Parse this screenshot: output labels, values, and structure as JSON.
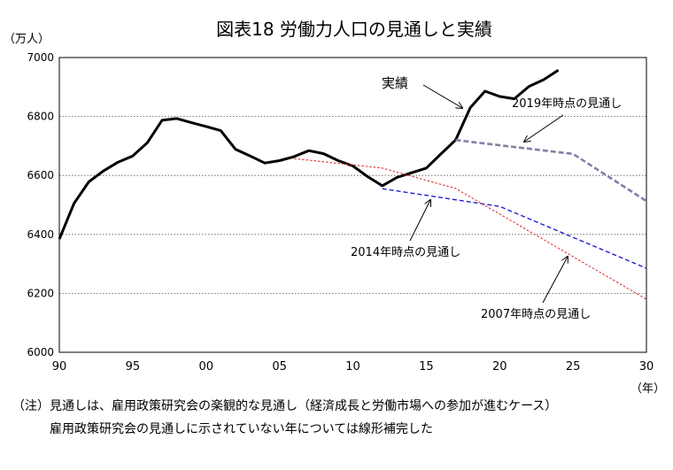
{
  "chart_data": {
    "type": "line",
    "title": "図表18 労働力人口の見通しと実績",
    "y_unit_label": "（万人）",
    "x_unit_label": "（年）",
    "xlim": [
      1990,
      2030
    ],
    "ylim": [
      6000,
      7000
    ],
    "x_ticks": [
      {
        "value": 1990,
        "label": "90"
      },
      {
        "value": 1995,
        "label": "95"
      },
      {
        "value": 2000,
        "label": "00"
      },
      {
        "value": 2005,
        "label": "05"
      },
      {
        "value": 2010,
        "label": "10"
      },
      {
        "value": 2015,
        "label": "15"
      },
      {
        "value": 2020,
        "label": "20"
      },
      {
        "value": 2025,
        "label": "25"
      },
      {
        "value": 2030,
        "label": "30"
      }
    ],
    "y_ticks": [
      {
        "value": 6000,
        "label": "6000"
      },
      {
        "value": 6200,
        "label": "6200"
      },
      {
        "value": 6400,
        "label": "6400"
      },
      {
        "value": 6600,
        "label": "6600"
      },
      {
        "value": 6800,
        "label": "6800"
      },
      {
        "value": 7000,
        "label": "7000"
      }
    ],
    "grid": "horizontal dotted",
    "series": [
      {
        "name": "実績",
        "color": "#000000",
        "style": "solid",
        "x": [
          1990,
          1991,
          1992,
          1993,
          1994,
          1995,
          1996,
          1997,
          1998,
          1999,
          2000,
          2001,
          2002,
          2003,
          2004,
          2005,
          2006,
          2007,
          2008,
          2009,
          2010,
          2011,
          2012,
          2013,
          2014,
          2015,
          2016,
          2017,
          2018,
          2019,
          2020,
          2021,
          2022,
          2023,
          2024
        ],
        "values": [
          6384,
          6505,
          6578,
          6615,
          6645,
          6666,
          6711,
          6787,
          6793,
          6779,
          6766,
          6752,
          6689,
          6666,
          6642,
          6650,
          6664,
          6684,
          6674,
          6650,
          6632,
          6596,
          6565,
          6593,
          6609,
          6625,
          6673,
          6720,
          6830,
          6886,
          6868,
          6860,
          6902,
          6925,
          6957
        ]
      },
      {
        "name": "2019年時点の見通し",
        "color": "#8080a8",
        "style": "dashed",
        "x": [
          2017,
          2025,
          2030
        ],
        "values": [
          6720,
          6673,
          6513
        ]
      },
      {
        "name": "2014年時点の見通し",
        "color": "#1f1fd0",
        "style": "dashed",
        "x": [
          2012,
          2020,
          2030
        ],
        "values": [
          6555,
          6495,
          6285
        ]
      },
      {
        "name": "2007年時点の見通し",
        "color": "#e03030",
        "style": "dotted",
        "x": [
          2006,
          2012,
          2017,
          2030
        ],
        "values": [
          6657,
          6625,
          6556,
          6180
        ]
      }
    ],
    "annotations": [
      {
        "text": "実績",
        "series": "実績"
      },
      {
        "text": "2019年時点の見通し",
        "series": "2019年時点の見通し"
      },
      {
        "text": "2014年時点の見通し",
        "series": "2014年時点の見通し"
      },
      {
        "text": "2007年時点の見通し",
        "series": "2007年時点の見通し"
      }
    ]
  },
  "notes": {
    "line1": "（注）見通しは、雇用政策研究会の楽観的な見通し（経済成長と労働市場への参加が進むケース）",
    "line2": "雇用政策研究会の見通しに示されていない年については線形補完した"
  }
}
